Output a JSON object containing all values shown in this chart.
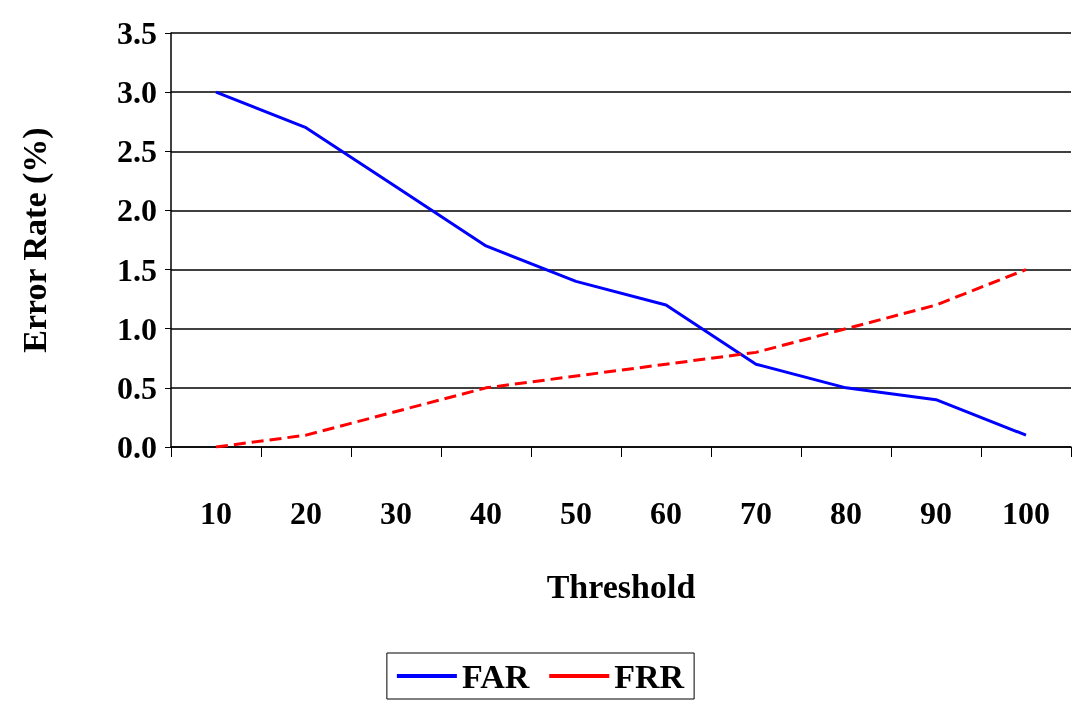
{
  "chart_data": {
    "type": "line",
    "xlabel": "Threshold",
    "ylabel": "Error Rate (%)",
    "categories": [
      "10",
      "20",
      "30",
      "40",
      "50",
      "60",
      "70",
      "80",
      "90",
      "100"
    ],
    "series": [
      {
        "name": "FAR",
        "color": "#0000ff",
        "line_style": "solid",
        "values": [
          3.0,
          2.7,
          2.2,
          1.7,
          1.4,
          1.2,
          0.7,
          0.5,
          0.4,
          0.1
        ]
      },
      {
        "name": "FRR",
        "color": "#ff0000",
        "line_style": "dashed",
        "values": [
          0,
          0.1,
          0.3,
          0.5,
          0.6,
          0.7,
          0.8,
          1.0,
          1.2,
          1.5
        ]
      }
    ],
    "ylim": [
      0,
      3.5
    ],
    "yticks": [
      {
        "value": 0,
        "label": "0.0"
      },
      0.5,
      {
        "value": 1,
        "label": "1.0"
      },
      1.5,
      {
        "value": 2,
        "label": "2.0"
      },
      2.5,
      {
        "value": 3,
        "label": "3.0"
      },
      3.5
    ],
    "grid": "y",
    "legend": "bottom",
    "marker": "none"
  }
}
